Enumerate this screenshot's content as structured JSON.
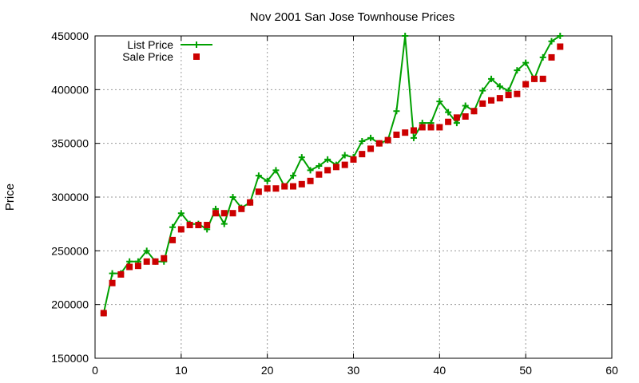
{
  "chart_data": {
    "type": "line",
    "title": "Nov 2001 San Jose Townhouse Prices",
    "xlabel": "",
    "ylabel": "Price",
    "xlim": [
      0,
      60
    ],
    "ylim": [
      150000,
      450000
    ],
    "xticks": [
      0,
      10,
      20,
      30,
      40,
      50,
      60
    ],
    "yticks": [
      150000,
      200000,
      250000,
      300000,
      350000,
      400000,
      450000
    ],
    "grid": true,
    "legend_position": "top-left",
    "x": [
      1,
      2,
      3,
      4,
      5,
      6,
      7,
      8,
      9,
      10,
      11,
      12,
      13,
      14,
      15,
      16,
      17,
      18,
      19,
      20,
      21,
      22,
      23,
      24,
      25,
      26,
      27,
      28,
      29,
      30,
      31,
      32,
      33,
      34,
      35,
      36,
      37,
      38,
      39,
      40,
      41,
      42,
      43,
      44,
      45,
      46,
      47,
      48,
      49,
      50,
      51,
      52,
      53,
      54
    ],
    "series": [
      {
        "name": "List Price",
        "style": "linespoints",
        "marker": "plus",
        "color": "#00a000",
        "values": [
          192000,
          229000,
          229000,
          240000,
          240000,
          250000,
          240000,
          240000,
          272000,
          285000,
          275000,
          275000,
          270000,
          289000,
          275000,
          300000,
          290000,
          295000,
          320000,
          315000,
          325000,
          310000,
          320000,
          337000,
          325000,
          329000,
          335000,
          330000,
          339000,
          337000,
          352000,
          355000,
          350000,
          353000,
          380000,
          450000,
          355000,
          369000,
          369000,
          389000,
          379000,
          369000,
          385000,
          380000,
          399000,
          410000,
          403000,
          399000,
          418000,
          425000,
          410000,
          430000,
          445000,
          450000
        ]
      },
      {
        "name": "Sale Price",
        "style": "points",
        "marker": "square",
        "color": "#cc0000",
        "values": [
          192000,
          220000,
          228000,
          235000,
          236000,
          240000,
          240000,
          243000,
          260000,
          270000,
          274000,
          274000,
          274000,
          285000,
          285000,
          285000,
          289000,
          295000,
          305000,
          308000,
          308000,
          310000,
          310000,
          312000,
          315000,
          321000,
          325000,
          328000,
          330000,
          335000,
          340000,
          345000,
          350000,
          353000,
          358000,
          360000,
          362000,
          365000,
          365000,
          365000,
          370000,
          374000,
          375000,
          380000,
          387000,
          390000,
          392000,
          395000,
          396000,
          405000,
          410000,
          410000,
          430000,
          440000
        ]
      }
    ]
  }
}
